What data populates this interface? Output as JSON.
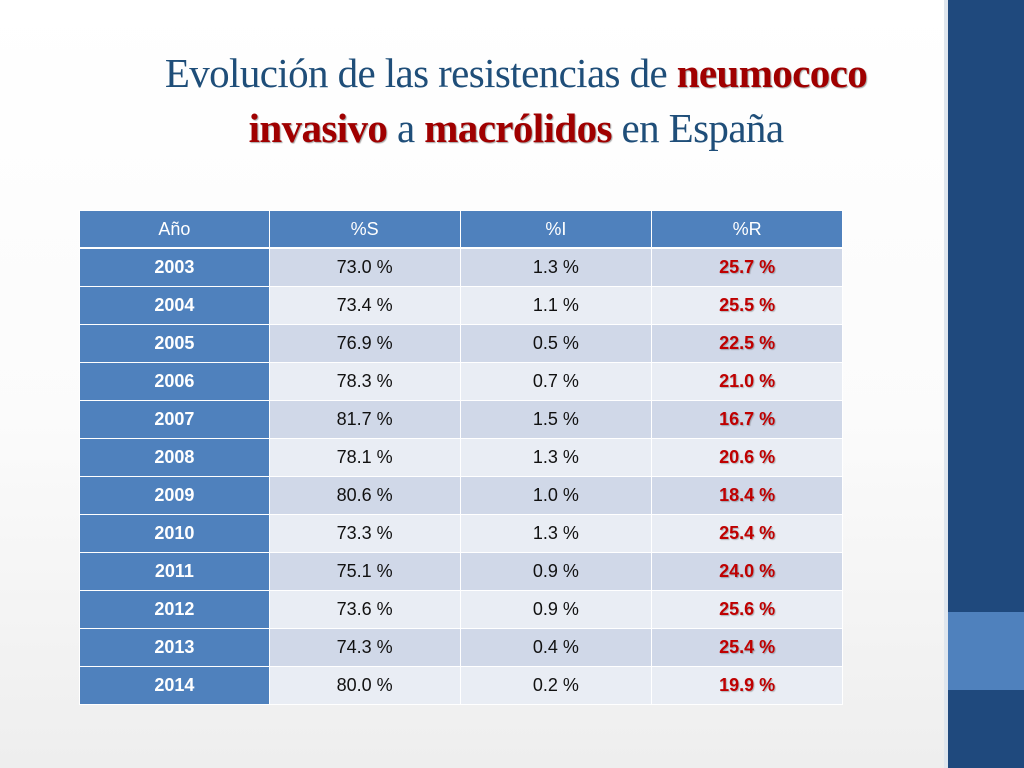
{
  "title": {
    "part1": "Evolución de las resistencias de ",
    "part2": "neumococo",
    "part3": "invasivo",
    "part4": " a ",
    "part5": "macrólidos",
    "part6": " en España"
  },
  "table": {
    "headers": [
      "Año",
      "%S",
      "%I",
      "%R"
    ],
    "rows": [
      {
        "year": "2003",
        "s": "73.0 %",
        "i": "1.3 %",
        "r": "25.7 %"
      },
      {
        "year": "2004",
        "s": "73.4 %",
        "i": "1.1 %",
        "r": "25.5 %"
      },
      {
        "year": "2005",
        "s": "76.9 %",
        "i": "0.5 %",
        "r": "22.5 %"
      },
      {
        "year": "2006",
        "s": "78.3 %",
        "i": "0.7 %",
        "r": "21.0 %"
      },
      {
        "year": "2007",
        "s": "81.7 %",
        "i": "1.5 %",
        "r": "16.7 %"
      },
      {
        "year": "2008",
        "s": "78.1 %",
        "i": "1.3 %",
        "r": "20.6 %"
      },
      {
        "year": "2009",
        "s": "80.6 %",
        "i": "1.0 %",
        "r": "18.4 %"
      },
      {
        "year": "2010",
        "s": "73.3 %",
        "i": "1.3 %",
        "r": "25.4 %"
      },
      {
        "year": "2011",
        "s": "75.1 %",
        "i": "0.9 %",
        "r": "24.0 %"
      },
      {
        "year": "2012",
        "s": "73.6 %",
        "i": "0.9 %",
        "r": "25.6 %"
      },
      {
        "year": "2013",
        "s": "74.3 %",
        "i": "0.4 %",
        "r": "25.4 %"
      },
      {
        "year": "2014",
        "s": "80.0 %",
        "i": "0.2 %",
        "r": "19.9 %"
      }
    ]
  },
  "colors": {
    "title": "#1f4e79",
    "highlight": "#a00000",
    "header_bg": "#4f81bd",
    "row_odd": "#d0d8e8",
    "row_even": "#e9edf4",
    "resistance_text": "#c00000",
    "band_dark": "#1f497d",
    "band_light": "#4f81bd"
  }
}
